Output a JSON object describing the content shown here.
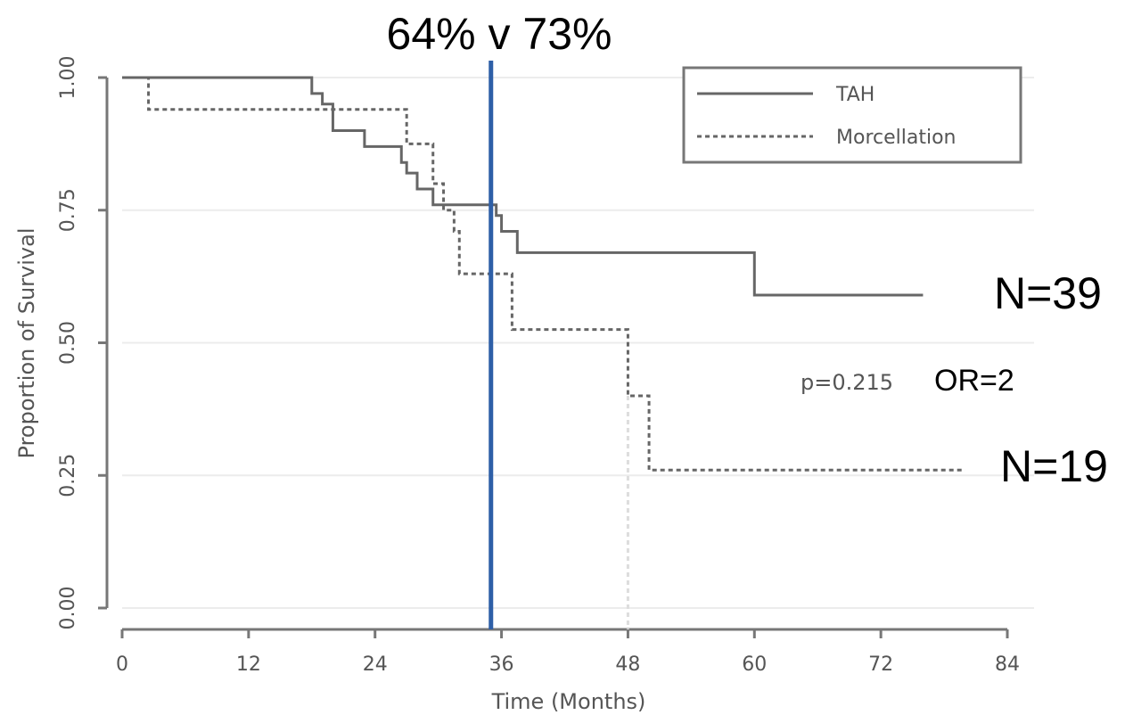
{
  "chart_data": {
    "type": "line",
    "subtype": "kaplan-meier-step",
    "title": "64% v 73%",
    "xlabel": "Time (Months)",
    "ylabel": "Proportion of Survival",
    "xlim": [
      0,
      84
    ],
    "ylim": [
      0,
      1
    ],
    "x_ticks": [
      0,
      12,
      24,
      36,
      48,
      60,
      72,
      84
    ],
    "x_tick_labels": [
      "0",
      "12",
      "24",
      "36",
      "48",
      "60",
      "72",
      "84"
    ],
    "y_ticks": [
      0,
      0.25,
      0.5,
      0.75,
      1
    ],
    "y_tick_labels": [
      "0.00",
      "0.25",
      "0.50",
      "0.75",
      "1.00"
    ],
    "grid": "horizontal",
    "legend_position": "top-right",
    "reference_line": {
      "x": 35,
      "color": "#2e5fa7"
    },
    "series": [
      {
        "name": "TAH",
        "style": "solid",
        "color": "#666666",
        "end_label": "N=39",
        "points": [
          [
            0,
            1.0
          ],
          [
            18,
            0.97
          ],
          [
            19,
            0.95
          ],
          [
            20,
            0.9
          ],
          [
            23,
            0.87
          ],
          [
            26.5,
            0.84
          ],
          [
            27,
            0.82
          ],
          [
            28,
            0.79
          ],
          [
            29.5,
            0.76
          ],
          [
            35.5,
            0.74
          ],
          [
            36,
            0.71
          ],
          [
            37.5,
            0.67
          ],
          [
            60,
            0.59
          ],
          [
            76,
            0.59
          ]
        ]
      },
      {
        "name": "Morcellation",
        "style": "dashed",
        "color": "#666666",
        "end_label": "N=19",
        "points": [
          [
            0,
            1.0
          ],
          [
            2.5,
            0.94
          ],
          [
            27,
            0.875
          ],
          [
            29.5,
            0.8
          ],
          [
            30.5,
            0.75
          ],
          [
            31.5,
            0.71
          ],
          [
            32,
            0.63
          ],
          [
            37,
            0.525
          ],
          [
            48,
            0.4
          ],
          [
            50,
            0.26
          ],
          [
            80,
            0.26
          ]
        ]
      }
    ],
    "annotations": {
      "pvalue": "p=0.215",
      "or": "OR=2"
    }
  }
}
